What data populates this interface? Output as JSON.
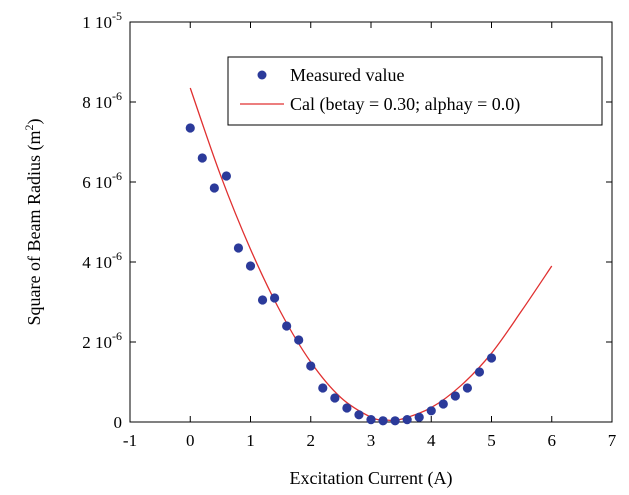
{
  "chart_data": {
    "type": "scatter",
    "xlabel": "Excitation Current (A)",
    "ylabel": "Square of Beam Radius (m2)",
    "ylabel_parts": {
      "main": "Square of Beam Radius (m",
      "sup": "2",
      "close": ")"
    },
    "xlim": [
      -1,
      7
    ],
    "ylim": [
      0,
      1e-05
    ],
    "x_ticks": [
      {
        "value": -1,
        "label": "-1"
      },
      {
        "value": 0,
        "label": "0"
      },
      {
        "value": 1,
        "label": "1"
      },
      {
        "value": 2,
        "label": "2"
      },
      {
        "value": 3,
        "label": "3"
      },
      {
        "value": 4,
        "label": "4"
      },
      {
        "value": 5,
        "label": "5"
      },
      {
        "value": 6,
        "label": "6"
      },
      {
        "value": 7,
        "label": "7"
      }
    ],
    "y_ticks": [
      {
        "value": 0,
        "mant": "0",
        "exp": ""
      },
      {
        "value": 2e-06,
        "mant": "2 10",
        "exp": "-6"
      },
      {
        "value": 4e-06,
        "mant": "4 10",
        "exp": "-6"
      },
      {
        "value": 6e-06,
        "mant": "6 10",
        "exp": "-6"
      },
      {
        "value": 8e-06,
        "mant": "8 10",
        "exp": "-6"
      },
      {
        "value": 1e-05,
        "mant": "1 10",
        "exp": "-5"
      }
    ],
    "legend_position": "top-right",
    "series": [
      {
        "name": "Measured value",
        "kind": "scatter",
        "color": "#2b3a9a",
        "x": [
          0,
          0.2,
          0.4,
          0.6,
          0.8,
          1.0,
          1.2,
          1.4,
          1.6,
          1.8,
          2.0,
          2.2,
          2.4,
          2.6,
          2.8,
          3.0,
          3.2,
          3.4,
          3.6,
          3.8,
          4.0,
          4.2,
          4.4,
          4.6,
          4.8,
          5.0
        ],
        "y": [
          7.35e-06,
          6.6e-06,
          5.85e-06,
          6.15e-06,
          4.35e-06,
          3.9e-06,
          3.05e-06,
          3.1e-06,
          2.4e-06,
          2.05e-06,
          1.4e-06,
          8.5e-07,
          6e-07,
          3.5e-07,
          1.8e-07,
          6e-08,
          3e-08,
          3e-08,
          6e-08,
          1.2e-07,
          2.8e-07,
          4.5e-07,
          6.5e-07,
          8.5e-07,
          1.25e-06,
          1.6e-06
        ]
      },
      {
        "name": "Cal (betay = 0.30; alphay = 0.0)",
        "kind": "line",
        "color": "#e03030",
        "x": [
          0,
          0.5,
          1.0,
          1.5,
          2.0,
          2.5,
          3.0,
          3.25,
          3.5,
          4.0,
          4.5,
          5.0,
          5.5,
          6.0
        ],
        "y": [
          8.35e-06,
          6.18e-06,
          4.32e-06,
          2.75e-06,
          1.5e-06,
          6.1e-07,
          1.2e-07,
          5e-08,
          7e-08,
          3.6e-07,
          9.2e-07,
          1.72e-06,
          2.78e-06,
          3.9e-06
        ]
      }
    ]
  }
}
